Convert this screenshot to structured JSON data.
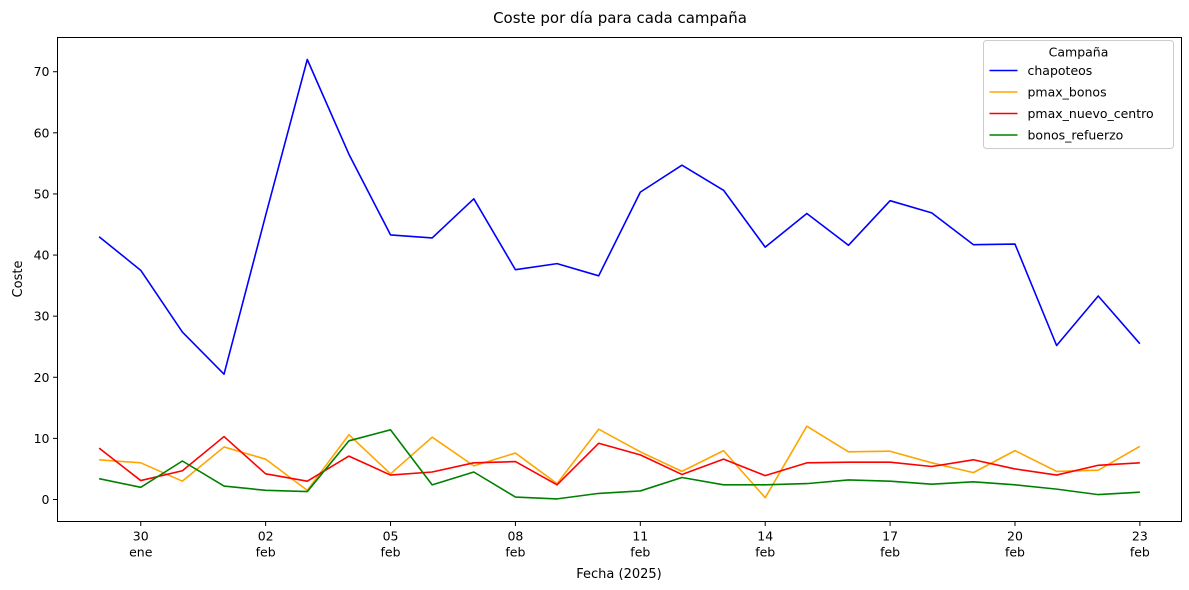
{
  "chart_data": {
    "type": "line",
    "title": "Coste por día para cada campaña",
    "xlabel": "Fecha (2025)",
    "ylabel": "Coste",
    "x": [
      "2025-01-29",
      "2025-01-30",
      "2025-01-31",
      "2025-02-01",
      "2025-02-02",
      "2025-02-03",
      "2025-02-04",
      "2025-02-05",
      "2025-02-06",
      "2025-02-07",
      "2025-02-08",
      "2025-02-09",
      "2025-02-10",
      "2025-02-11",
      "2025-02-12",
      "2025-02-13",
      "2025-02-14",
      "2025-02-15",
      "2025-02-16",
      "2025-02-17",
      "2025-02-18",
      "2025-02-19",
      "2025-02-20",
      "2025-02-21",
      "2025-02-22",
      "2025-02-23"
    ],
    "xlim": [
      "2025-01-28",
      "2025-02-24"
    ],
    "ylim": [
      -3.6,
      75.6
    ],
    "yticks": [
      0,
      10,
      20,
      30,
      40,
      50,
      60,
      70
    ],
    "xticks": [
      {
        "date": "2025-01-30",
        "day": "30",
        "month": "ene"
      },
      {
        "date": "2025-02-02",
        "day": "02",
        "month": "feb"
      },
      {
        "date": "2025-02-05",
        "day": "05",
        "month": "feb"
      },
      {
        "date": "2025-02-08",
        "day": "08",
        "month": "feb"
      },
      {
        "date": "2025-02-11",
        "day": "11",
        "month": "feb"
      },
      {
        "date": "2025-02-14",
        "day": "14",
        "month": "feb"
      },
      {
        "date": "2025-02-17",
        "day": "17",
        "month": "feb"
      },
      {
        "date": "2025-02-20",
        "day": "20",
        "month": "feb"
      },
      {
        "date": "2025-02-23",
        "day": "23",
        "month": "feb"
      }
    ],
    "grid": false,
    "legend": {
      "title": "Campaña",
      "placement": "top-right"
    },
    "series": [
      {
        "name": "chapoteos",
        "color": "#0000ff",
        "values": [
          43.0,
          37.5,
          27.4,
          20.5,
          46.5,
          72.0,
          56.5,
          43.3,
          42.8,
          49.2,
          37.6,
          38.6,
          36.6,
          50.3,
          54.7,
          50.6,
          41.3,
          46.8,
          41.6,
          48.9,
          46.9,
          41.7,
          41.8,
          25.2,
          33.3,
          25.5
        ]
      },
      {
        "name": "pmax_bonos",
        "color": "#ffa500",
        "values": [
          6.5,
          6.0,
          3.0,
          8.6,
          6.6,
          1.5,
          10.6,
          4.2,
          10.2,
          5.5,
          7.6,
          2.6,
          11.5,
          7.8,
          4.6,
          8.0,
          0.3,
          12.0,
          7.8,
          7.9,
          6.0,
          4.4,
          8.0,
          4.6,
          4.8,
          8.7
        ]
      },
      {
        "name": "pmax_nuevo_centro",
        "color": "#ff0000",
        "values": [
          8.4,
          3.1,
          4.7,
          10.3,
          4.2,
          3.0,
          7.1,
          4.0,
          4.5,
          6.0,
          6.2,
          2.4,
          9.2,
          7.3,
          4.1,
          6.6,
          3.9,
          6.0,
          6.1,
          6.1,
          5.4,
          6.5,
          5.0,
          4.0,
          5.6,
          6.0
        ]
      },
      {
        "name": "bonos_refuerzo",
        "color": "#008000",
        "values": [
          3.4,
          2.0,
          6.3,
          2.2,
          1.5,
          1.3,
          9.6,
          11.4,
          2.4,
          4.5,
          0.4,
          0.1,
          1.0,
          1.4,
          3.6,
          2.4,
          2.4,
          2.6,
          3.2,
          3.0,
          2.5,
          2.9,
          2.4,
          1.7,
          0.8,
          1.2
        ]
      }
    ]
  }
}
